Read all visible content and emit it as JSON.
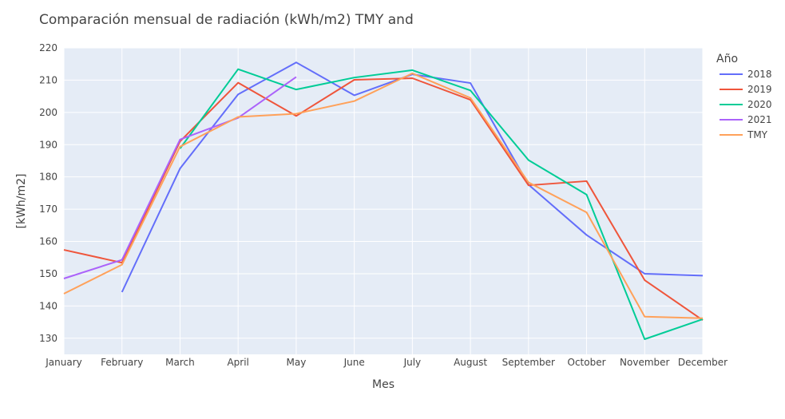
{
  "chart_data": {
    "type": "line",
    "title": "Comparación mensual de radiación (kWh/m2) TMY and",
    "xlabel": "Mes",
    "ylabel": "[kWh/m2]",
    "categories": [
      "January",
      "February",
      "March",
      "April",
      "May",
      "June",
      "July",
      "August",
      "September",
      "October",
      "November",
      "December"
    ],
    "ylim": [
      125,
      220
    ],
    "yticks": [
      130,
      140,
      150,
      160,
      170,
      180,
      190,
      200,
      210,
      220
    ],
    "legend_title": "Año",
    "legend_position": "right",
    "grid": true,
    "series": [
      {
        "name": "2018",
        "color": "#636efa",
        "values": [
          null,
          144.3,
          182.6,
          205.6,
          215.5,
          205.3,
          211.8,
          209.1,
          177.6,
          162.0,
          150.0,
          149.4
        ]
      },
      {
        "name": "2019",
        "color": "#ef553b",
        "values": [
          157.4,
          153.4,
          191.0,
          209.2,
          198.9,
          210.1,
          210.6,
          203.9,
          177.4,
          178.7,
          148.0,
          135.6
        ]
      },
      {
        "name": "2020",
        "color": "#00cc96",
        "values": [
          null,
          null,
          188.8,
          213.4,
          207.1,
          210.8,
          213.1,
          206.8,
          185.2,
          174.5,
          129.7,
          135.9
        ]
      },
      {
        "name": "2021",
        "color": "#ab63fa",
        "values": [
          148.5,
          154.3,
          191.6,
          198.3,
          211.0,
          null,
          null,
          null,
          null,
          null,
          null,
          null
        ]
      },
      {
        "name": "TMY",
        "color": "#ffa15a",
        "values": [
          143.8,
          152.8,
          189.4,
          198.6,
          199.6,
          203.5,
          212.1,
          204.5,
          178.3,
          169.0,
          136.7,
          136.2
        ]
      }
    ]
  }
}
